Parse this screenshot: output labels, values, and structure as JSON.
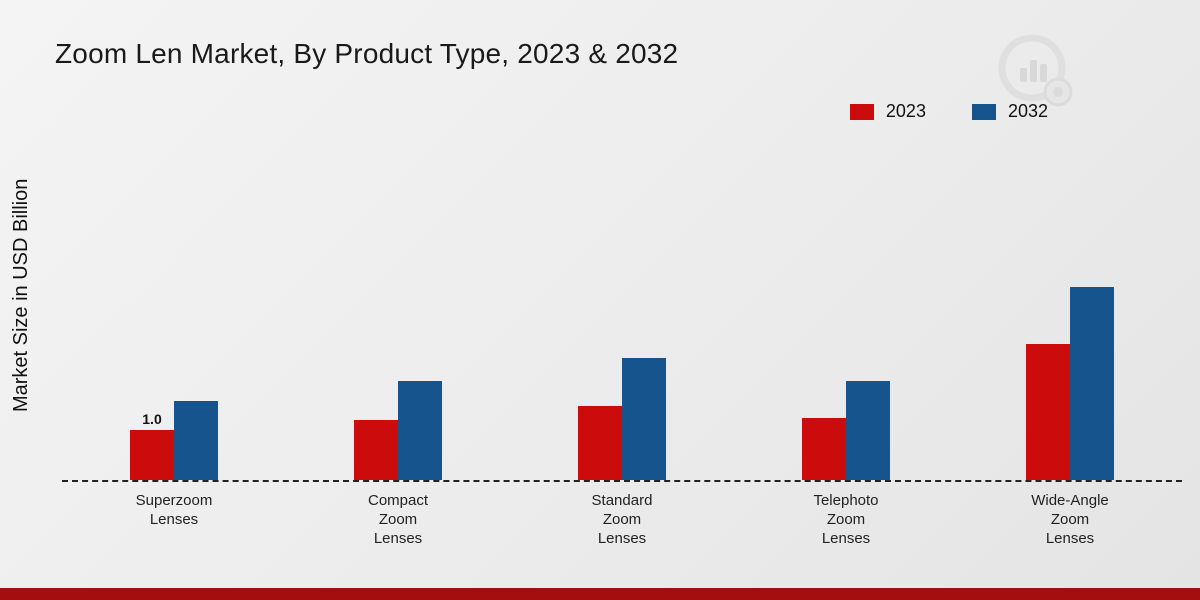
{
  "title": "Zoom Len Market, By Product Type, 2023 & 2032",
  "ylabel": "Market Size in USD Billion",
  "legend": [
    {
      "label": "2023",
      "color": "#cc0c0c"
    },
    {
      "label": "2032",
      "color": "#15548c"
    }
  ],
  "colors": {
    "series_2023": "#cc0c0c",
    "series_2032": "#15548c",
    "footer_strip": "#a50e0e",
    "baseline": "#222222"
  },
  "chart_data": {
    "type": "bar",
    "title": "Zoom Len Market, By Product Type, 2023 & 2032",
    "xlabel": "",
    "ylabel": "Market Size in USD Billion",
    "categories": [
      "Superzoom\nLenses",
      "Compact\nZoom\nLenses",
      "Standard\nZoom\nLenses",
      "Telephoto\nZoom\nLenses",
      "Wide-Angle\nZoom\nLenses"
    ],
    "series": [
      {
        "name": "2023",
        "color": "#cc0c0c",
        "values": [
          1.0,
          1.2,
          1.5,
          1.25,
          2.75
        ]
      },
      {
        "name": "2032",
        "color": "#15548c",
        "values": [
          1.6,
          2.0,
          2.45,
          2.0,
          3.9
        ]
      }
    ],
    "annotations": [
      {
        "series": "2023",
        "category_index": 0,
        "text": "1.0"
      }
    ],
    "ylim": [
      0,
      5
    ],
    "grid": false,
    "legend_position": "top-right",
    "baseline_style": "dashed"
  }
}
